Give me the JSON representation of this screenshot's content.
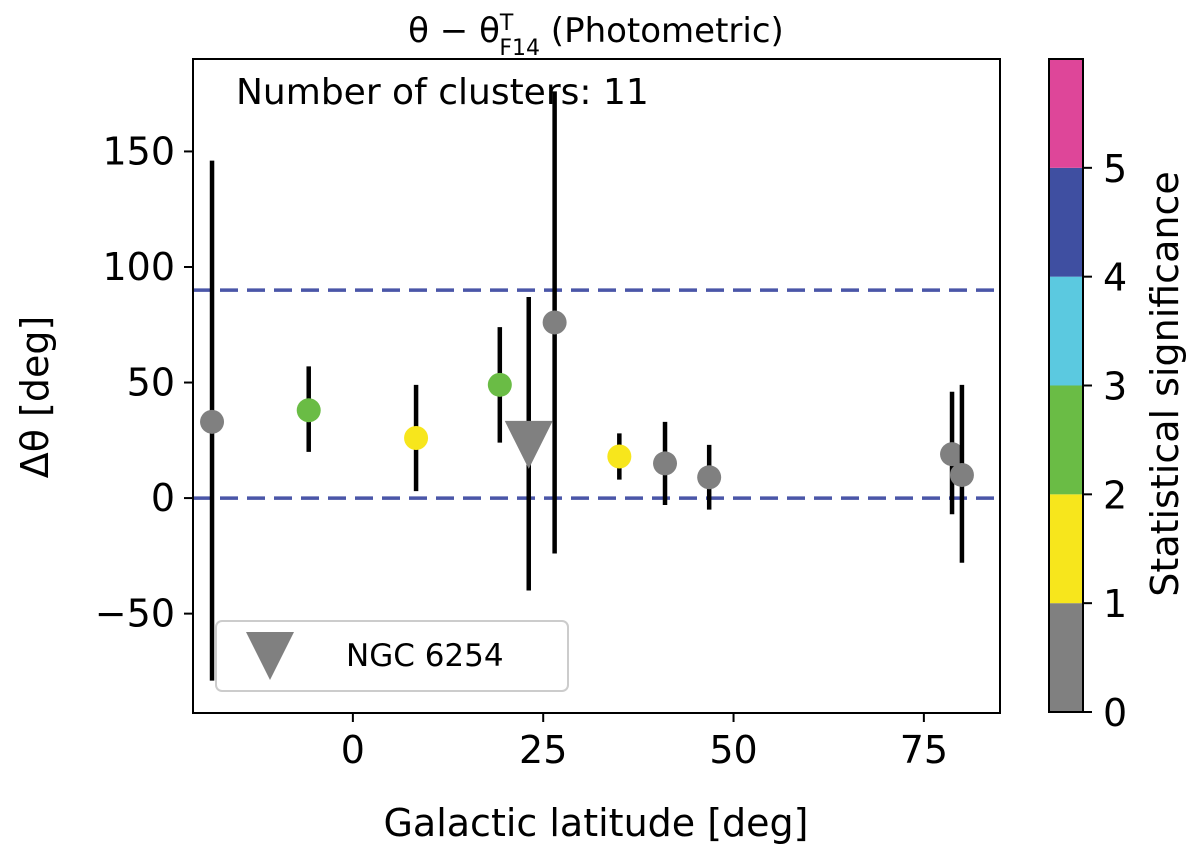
{
  "chart_data": {
    "type": "scatter",
    "title": {
      "prefix": "θ − θ",
      "superscript": "T",
      "subscript": "F14",
      "suffix": " (Photometric)"
    },
    "xlabel": "Galactic latitude [deg]",
    "ylabel": "Δθ [deg]",
    "xlim": [
      -21,
      85
    ],
    "ylim": [
      -93,
      190
    ],
    "xticks": [
      0,
      25,
      50,
      75
    ],
    "xtick_labels": [
      "0",
      "25",
      "50",
      "75"
    ],
    "yticks": [
      -50,
      0,
      50,
      100,
      150
    ],
    "ytick_labels": [
      "−50",
      "0",
      "50",
      "100",
      "150"
    ],
    "annotation": "Number of clusters: 11",
    "reference_lines": [
      {
        "y": 90,
        "style": "dashed",
        "color": "#4a56a8"
      },
      {
        "y": 0,
        "style": "dashed",
        "color": "#4a56a8"
      }
    ],
    "points": [
      {
        "x": -18.5,
        "y": 33,
        "err_low": -79,
        "err_high": 146,
        "significance": 0.5,
        "color": "#808080",
        "marker": "circle"
      },
      {
        "x": -5.8,
        "y": 38,
        "err_low": 20,
        "err_high": 57,
        "significance": 2.5,
        "color": "#6abc45",
        "marker": "circle"
      },
      {
        "x": 8.3,
        "y": 26,
        "err_low": 3,
        "err_high": 49,
        "significance": 1.5,
        "color": "#f7e61c",
        "marker": "circle"
      },
      {
        "x": 19.3,
        "y": 49,
        "err_low": 24,
        "err_high": 74,
        "significance": 2.5,
        "color": "#6abc45",
        "marker": "circle"
      },
      {
        "x": 26.5,
        "y": 76,
        "err_low": -24,
        "err_high": 176,
        "significance": 0.5,
        "color": "#808080",
        "marker": "circle"
      },
      {
        "x": 35.0,
        "y": 18,
        "err_low": 8,
        "err_high": 28,
        "significance": 1.5,
        "color": "#f7e61c",
        "marker": "circle"
      },
      {
        "x": 41.0,
        "y": 15,
        "err_low": -3,
        "err_high": 33,
        "significance": 0.5,
        "color": "#808080",
        "marker": "circle"
      },
      {
        "x": 46.8,
        "y": 9,
        "err_low": -5,
        "err_high": 23,
        "significance": 0.5,
        "color": "#808080",
        "marker": "circle"
      },
      {
        "x": 78.7,
        "y": 19,
        "err_low": -7,
        "err_high": 46,
        "significance": 0.5,
        "color": "#808080",
        "marker": "circle"
      },
      {
        "x": 80.0,
        "y": 10,
        "err_low": -28,
        "err_high": 49,
        "significance": 0.5,
        "color": "#808080",
        "marker": "circle"
      },
      {
        "x": 23.1,
        "y": 23,
        "err_low": -40,
        "err_high": 87,
        "significance": 0.5,
        "color": "#808080",
        "marker": "triangle-down",
        "label": "NGC 6254"
      }
    ],
    "legend": {
      "placement": "lower-left",
      "entries": [
        {
          "label": "NGC 6254",
          "marker": "triangle-down",
          "color": "#808080"
        }
      ]
    },
    "colorbar": {
      "label": "Statistical significance",
      "range": [
        0,
        6
      ],
      "ticks": [
        0,
        1,
        2,
        3,
        4,
        5
      ],
      "tick_labels": [
        "0",
        "1",
        "2",
        "3",
        "4",
        "5"
      ],
      "bins": [
        {
          "from": 0,
          "to": 1,
          "color": "#808080"
        },
        {
          "from": 1,
          "to": 2,
          "color": "#f7e61c"
        },
        {
          "from": 2,
          "to": 3,
          "color": "#6abc45"
        },
        {
          "from": 3,
          "to": 4,
          "color": "#5bc9e0"
        },
        {
          "from": 4,
          "to": 5,
          "color": "#3f4fa1"
        },
        {
          "from": 5,
          "to": 6,
          "color": "#de4699"
        }
      ]
    }
  }
}
